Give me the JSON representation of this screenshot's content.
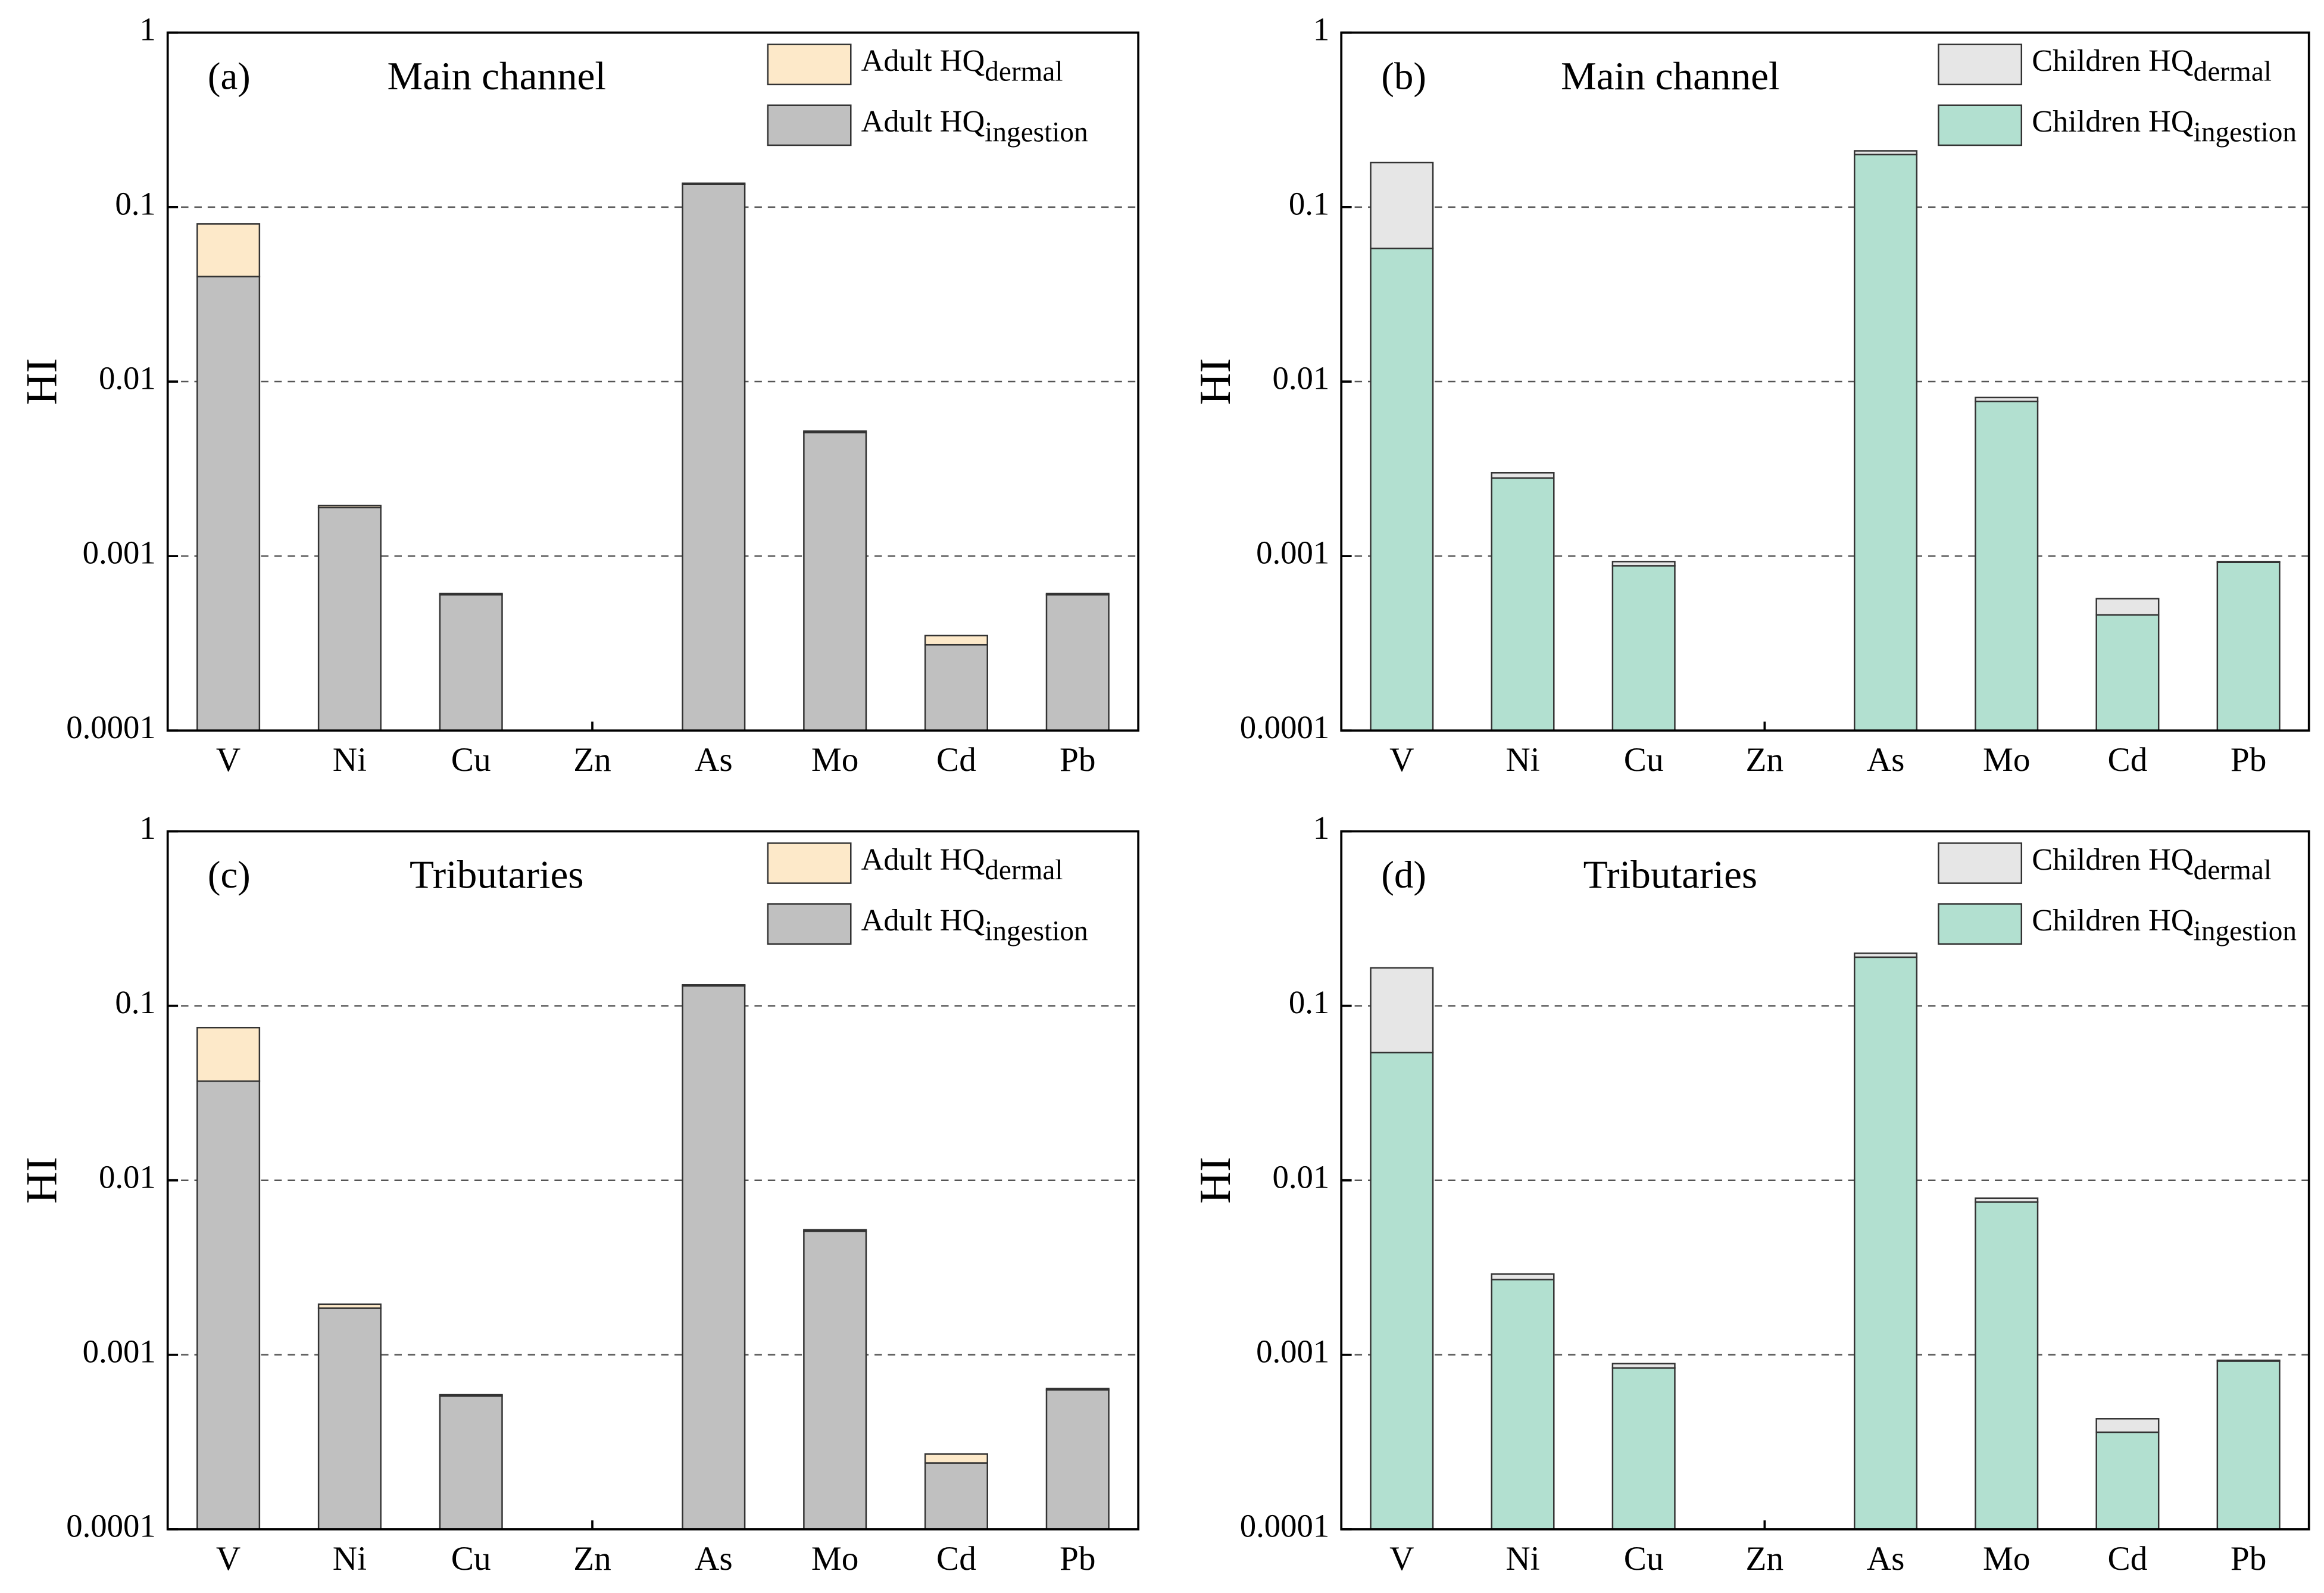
{
  "chart_data": [
    {
      "type": "bar",
      "stacked": true,
      "panel_label": "(a)",
      "title": "Main channel",
      "ylabel": "HI",
      "categories": [
        "V",
        "Ni",
        "Cu",
        "Zn",
        "As",
        "Mo",
        "Cd",
        "Pb"
      ],
      "series": [
        {
          "name": "Adult HQ",
          "name_subscript": "ingestion",
          "color": "#c0c0c0",
          "values": [
            0.04,
            0.0019,
            0.0006,
            null,
            0.135,
            0.0051,
            0.00031,
            0.0006
          ]
        },
        {
          "name": "Adult HQ",
          "name_subscript": "dermal",
          "color": "#fde9c9",
          "values": [
            0.04,
            5e-05,
            1e-05,
            null,
            0.002,
            0.0001,
            4e-05,
            1e-05
          ]
        }
      ],
      "ylim": [
        0.0001,
        1
      ],
      "yticks": [
        0.0001,
        0.001,
        0.01,
        0.1,
        1
      ],
      "log_scale": true,
      "grid": true,
      "legend": "upper right"
    },
    {
      "type": "bar",
      "stacked": true,
      "panel_label": "(b)",
      "title": "Main channel",
      "ylabel": "HI",
      "categories": [
        "V",
        "Ni",
        "Cu",
        "Zn",
        "As",
        "Mo",
        "Cd",
        "Pb"
      ],
      "series": [
        {
          "name": "Children HQ",
          "name_subscript": "ingestion",
          "color": "#b2e0d0",
          "values": [
            0.058,
            0.0028,
            0.00088,
            null,
            0.2,
            0.0077,
            0.00046,
            0.00092
          ]
        },
        {
          "name": "Children HQ",
          "name_subscript": "dermal",
          "color": "#e6e6e6",
          "values": [
            0.122,
            0.0002,
            5e-05,
            null,
            0.01,
            0.0004,
            0.00011,
            1e-05
          ]
        }
      ],
      "ylim": [
        0.0001,
        1
      ],
      "yticks": [
        0.0001,
        0.001,
        0.01,
        0.1,
        1
      ],
      "log_scale": true,
      "grid": true,
      "legend": "upper right"
    },
    {
      "type": "bar",
      "stacked": true,
      "panel_label": "(c)",
      "title": "Tributaries",
      "ylabel": "HI",
      "categories": [
        "V",
        "Ni",
        "Cu",
        "Zn",
        "As",
        "Mo",
        "Cd",
        "Pb"
      ],
      "series": [
        {
          "name": "Adult HQ",
          "name_subscript": "ingestion",
          "color": "#c0c0c0",
          "values": [
            0.037,
            0.00185,
            0.00058,
            null,
            0.13,
            0.0051,
            0.00024,
            0.00063
          ]
        },
        {
          "name": "Adult HQ",
          "name_subscript": "dermal",
          "color": "#fde9c9",
          "values": [
            0.038,
            0.0001,
            1e-05,
            null,
            0.002,
            0.0001,
            3e-05,
            1e-05
          ]
        }
      ],
      "ylim": [
        0.0001,
        1
      ],
      "yticks": [
        0.0001,
        0.001,
        0.01,
        0.1,
        1
      ],
      "log_scale": true,
      "grid": true,
      "legend": "upper right"
    },
    {
      "type": "bar",
      "stacked": true,
      "panel_label": "(d)",
      "title": "Tributaries",
      "ylabel": "HI",
      "categories": [
        "V",
        "Ni",
        "Cu",
        "Zn",
        "As",
        "Mo",
        "Cd",
        "Pb"
      ],
      "series": [
        {
          "name": "Children HQ",
          "name_subscript": "ingestion",
          "color": "#b2e0d0",
          "values": [
            0.054,
            0.0027,
            0.00084,
            null,
            0.19,
            0.0075,
            0.00036,
            0.00092
          ]
        },
        {
          "name": "Children HQ",
          "name_subscript": "dermal",
          "color": "#e6e6e6",
          "values": [
            0.111,
            0.0002,
            5e-05,
            null,
            0.01,
            0.0004,
            7e-05,
            1e-05
          ]
        }
      ],
      "ylim": [
        0.0001,
        1
      ],
      "yticks": [
        0.0001,
        0.001,
        0.01,
        0.1,
        1
      ],
      "log_scale": true,
      "grid": true,
      "legend": "upper right"
    }
  ]
}
